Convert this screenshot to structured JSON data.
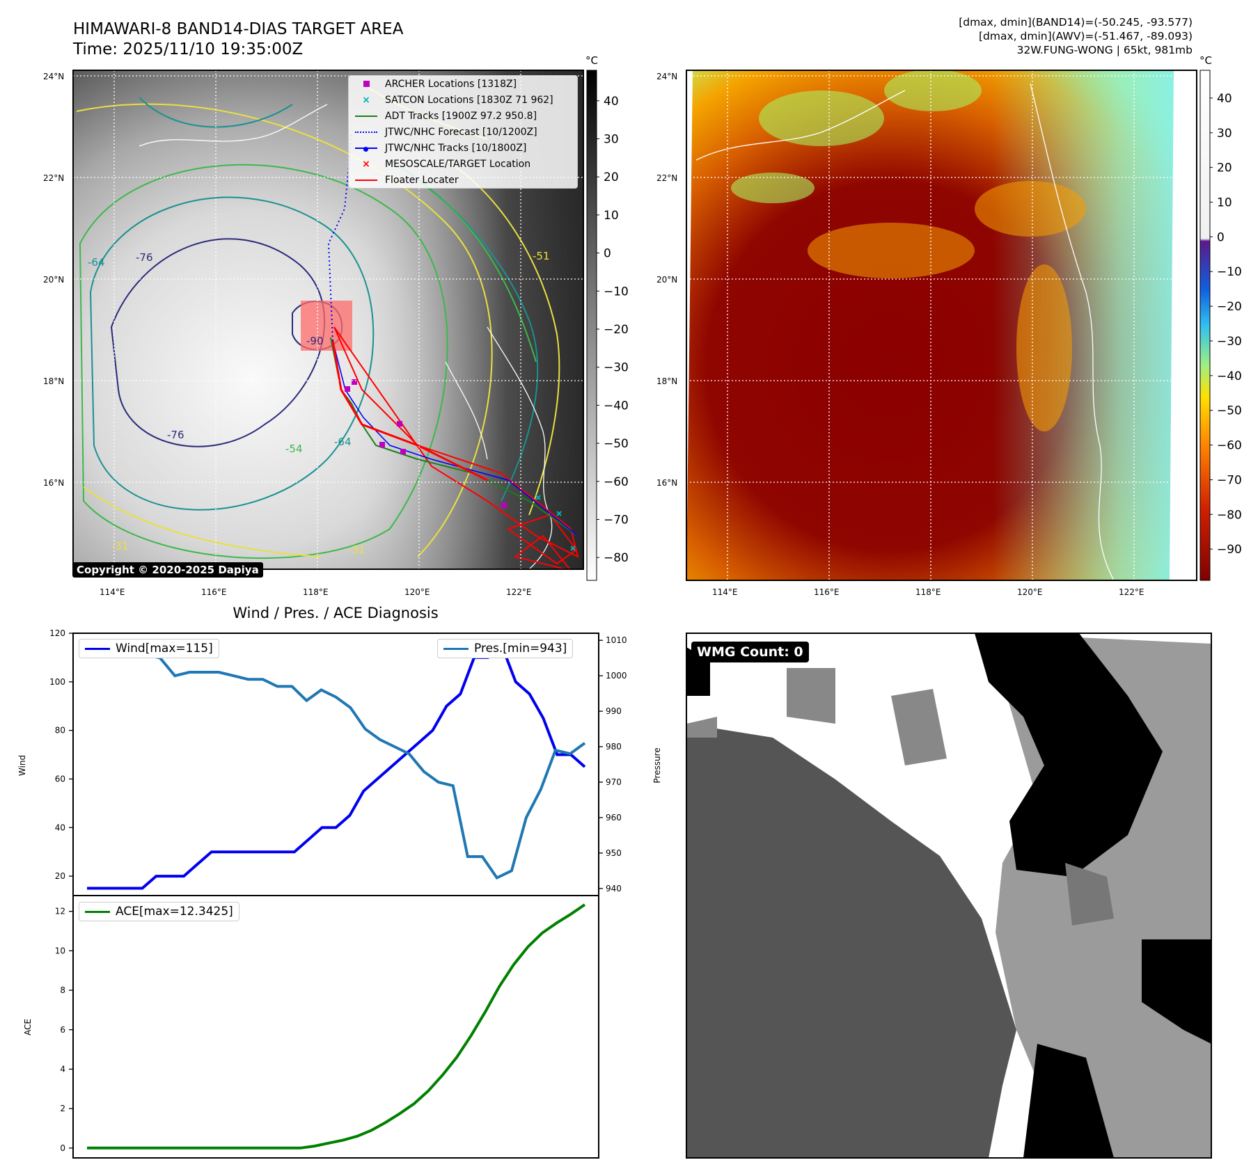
{
  "header": {
    "title_line1": "HIMAWARI-8 BAND14-DIAS TARGET AREA",
    "title_line2": "Time: 2025/11/10 19:35:00Z",
    "info_line1": "[dmax, dmin](BAND14)=(-50.245, -93.577)",
    "info_line2": "[dmax, dmin](AWV)=(-51.467, -89.093)",
    "info_line3": "32W.FUNG-WONG | 65kt, 981mb"
  },
  "maps": {
    "lat_labels": [
      "24°N",
      "22°N",
      "20°N",
      "18°N",
      "16°N"
    ],
    "lon_labels": [
      "114°E",
      "116°E",
      "118°E",
      "120°E",
      "122°E"
    ],
    "colorbar_unit": "°C",
    "gray_colorbar_ticks": [
      "40",
      "30",
      "20",
      "10",
      "0",
      "−10",
      "−20",
      "−30",
      "−40",
      "−50",
      "−60",
      "−70",
      "−80"
    ],
    "jet_colorbar_ticks": [
      "40",
      "30",
      "20",
      "10",
      "0",
      "−10",
      "−20",
      "−30",
      "−40",
      "−50",
      "−60",
      "−70",
      "−80",
      "−90"
    ],
    "contour_labels": [
      "-64",
      "-76",
      "-76",
      "-90",
      "-51",
      "-31",
      "-31",
      "-64",
      "-54"
    ],
    "copyright": "Copyright © 2020-2025 Dapiya",
    "legend": [
      {
        "label": "ARCHER Locations [1318Z]",
        "symbol": "square",
        "color": "#c000c0"
      },
      {
        "label": "SATCON Locations [1830Z 71 962]",
        "symbol": "x",
        "color": "#00b3b3"
      },
      {
        "label": "ADT Tracks [1900Z 97.2 950.8]",
        "symbol": "line",
        "color": "#1a7f1a"
      },
      {
        "label": "JTWC/NHC Forecast [10/1200Z]",
        "symbol": "dotted",
        "color": "#0000ff"
      },
      {
        "label": "JTWC/NHC Tracks [10/1800Z]",
        "symbol": "line-dot",
        "color": "#0000ff"
      },
      {
        "label": "MESOSCALE/TARGET Location",
        "symbol": "x",
        "color": "#ff0000"
      },
      {
        "label": "Floater Locater",
        "symbol": "line",
        "color": "#ff0000"
      }
    ]
  },
  "diagnosis": {
    "title": "Wind / Pres. / ACE Diagnosis",
    "wmg_label": "WMG Count: 0"
  },
  "chart_data": [
    {
      "type": "line",
      "title": "Wind / Pres. / ACE Diagnosis",
      "ylabel": "Wind",
      "y2label": "Pressure",
      "ylim": [
        12,
        120
      ],
      "y2lim": [
        938,
        1012
      ],
      "yticks": [
        20,
        40,
        60,
        80,
        100,
        120
      ],
      "y2ticks": [
        940,
        950,
        960,
        970,
        980,
        990,
        1000,
        1010
      ],
      "series": [
        {
          "name": "Wind[max=115]",
          "axis": "left",
          "color": "#0000ee",
          "values": [
            15,
            15,
            15,
            15,
            15,
            20,
            20,
            20,
            25,
            30,
            30,
            30,
            30,
            30,
            30,
            30,
            35,
            40,
            40,
            45,
            55,
            60,
            65,
            70,
            75,
            80,
            90,
            95,
            110,
            110,
            115,
            100,
            95,
            85,
            70,
            70,
            65
          ]
        },
        {
          "name": "Pres.[min=943]",
          "axis": "right",
          "color": "#1f77b4",
          "values": [
            1009,
            1007,
            1007,
            1007,
            1006,
            1005,
            1000,
            1001,
            1001,
            1001,
            1000,
            999,
            999,
            997,
            997,
            993,
            996,
            994,
            991,
            985,
            982,
            980,
            978,
            973,
            970,
            969,
            949,
            949,
            943,
            945,
            960,
            968,
            979,
            978,
            981
          ]
        }
      ]
    },
    {
      "type": "line",
      "ylabel": "ACE",
      "ylim": [
        -0.5,
        12.8
      ],
      "yticks": [
        0,
        2,
        4,
        6,
        8,
        10,
        12
      ],
      "series": [
        {
          "name": "ACE[max=12.3425]",
          "color": "#008000",
          "values": [
            0,
            0,
            0,
            0,
            0,
            0,
            0,
            0,
            0,
            0,
            0,
            0,
            0,
            0,
            0,
            0,
            0.1,
            0.25,
            0.4,
            0.6,
            0.9,
            1.3,
            1.75,
            2.25,
            2.9,
            3.7,
            4.6,
            5.7,
            6.9,
            8.2,
            9.3,
            10.2,
            10.9,
            11.4,
            11.85,
            12.3425
          ]
        }
      ]
    }
  ]
}
